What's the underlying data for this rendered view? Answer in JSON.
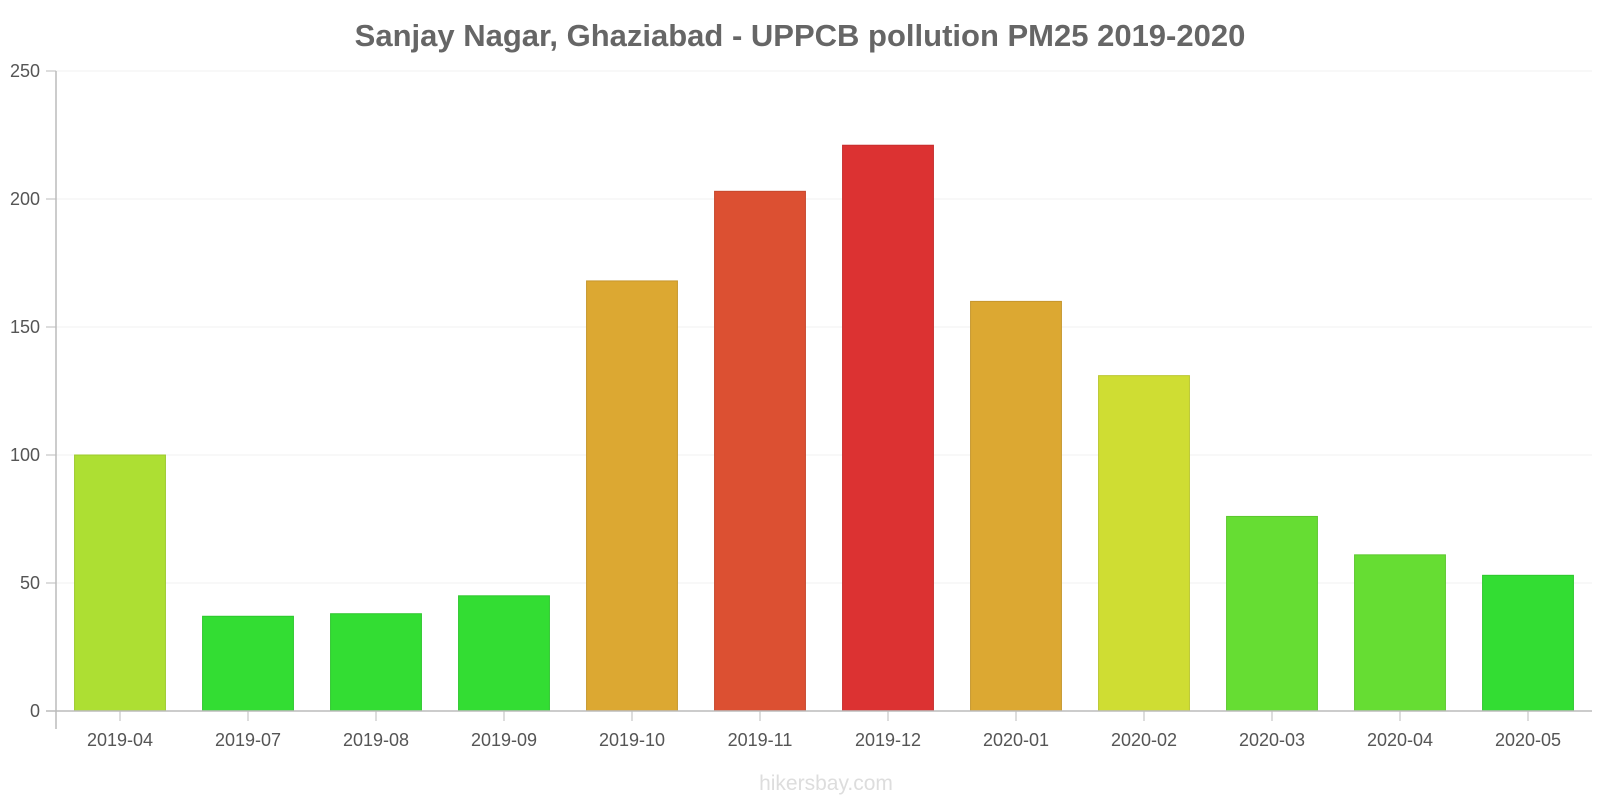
{
  "chart_data": {
    "type": "bar",
    "title": "Sanjay Nagar, Ghaziabad - UPPCB pollution PM25 2019-2020",
    "xlabel": "",
    "ylabel": "",
    "ylim": [
      0,
      250
    ],
    "yticks": [
      0,
      50,
      100,
      150,
      200,
      250
    ],
    "ytick_labels": [
      "0",
      "50",
      "100",
      "150",
      "200",
      "250"
    ],
    "grid": true,
    "categories": [
      "2019-04",
      "2019-07",
      "2019-08",
      "2019-09",
      "2019-10",
      "2019-11",
      "2019-12",
      "2020-01",
      "2020-02",
      "2020-03",
      "2020-04",
      "2020-05"
    ],
    "values": [
      100,
      37,
      38,
      45,
      168,
      203,
      221,
      160,
      131,
      76,
      61,
      53
    ],
    "bar_colors": [
      "#addf33",
      "#33dd33",
      "#33dd33",
      "#33dd33",
      "#dca832",
      "#dc5032",
      "#dc3232",
      "#dca832",
      "#cfdd33",
      "#66dd33",
      "#66dd33",
      "#33dd33"
    ],
    "bar_borders": [
      "#9cc92e",
      "#2ec72e",
      "#2ec72e",
      "#2ec72e",
      "#c6972d",
      "#c6482d",
      "#c62d2d",
      "#c6972d",
      "#bac72e",
      "#5cc72e",
      "#5cc72e",
      "#2ec72e"
    ]
  },
  "watermark": "hikersbay.com",
  "colors": {
    "title": "#666666",
    "axis": "#bbbbbb",
    "grid": "#f2f2f2",
    "tick_text": "#555555",
    "watermark": "#dddddd"
  }
}
